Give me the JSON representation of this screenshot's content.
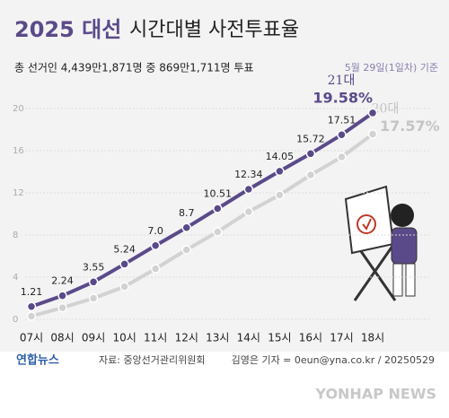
{
  "chart_data": {
    "type": "line",
    "title_highlight": "2025 대선",
    "title": "시간대별 사전투표율",
    "subtitle": "총 선거인 4,439만1,871명 중 869만1,711명 투표",
    "note": "5월 29일(1일차) 기준",
    "categories": [
      "07시",
      "08시",
      "09시",
      "10시",
      "11시",
      "12시",
      "13시",
      "14시",
      "15시",
      "16시",
      "17시",
      "18시"
    ],
    "series": [
      {
        "name": "21대",
        "color": "#5b4a8a",
        "values": [
          1.21,
          2.24,
          3.55,
          5.24,
          7.0,
          8.7,
          10.51,
          12.34,
          14.05,
          15.72,
          17.51,
          19.58
        ],
        "value_labels": [
          "1.21",
          "2.24",
          "3.55",
          "5.24",
          "7.0",
          "8.7",
          "10.51",
          "12.34",
          "14.05",
          "15.72",
          "17.51",
          "19.58%"
        ]
      },
      {
        "name": "20대",
        "color": "#d2d2d2",
        "values": [
          0.3,
          1.1,
          2.0,
          3.1,
          4.8,
          6.6,
          8.3,
          10.2,
          11.8,
          13.7,
          15.4,
          17.57
        ],
        "value_labels": [
          null,
          null,
          null,
          null,
          null,
          null,
          null,
          null,
          null,
          null,
          null,
          "17.57%"
        ]
      }
    ],
    "ylim": [
      0,
      20
    ],
    "yticks": [
      0,
      4,
      8,
      12,
      16,
      20
    ],
    "grid": true,
    "logo": "연합뉴스",
    "source": "자료: 중앙선거관리위원회",
    "credit": "김영은 기자 = 0eun@yna.co.kr / 20250529",
    "watermark": "YONHAP NEWS"
  }
}
